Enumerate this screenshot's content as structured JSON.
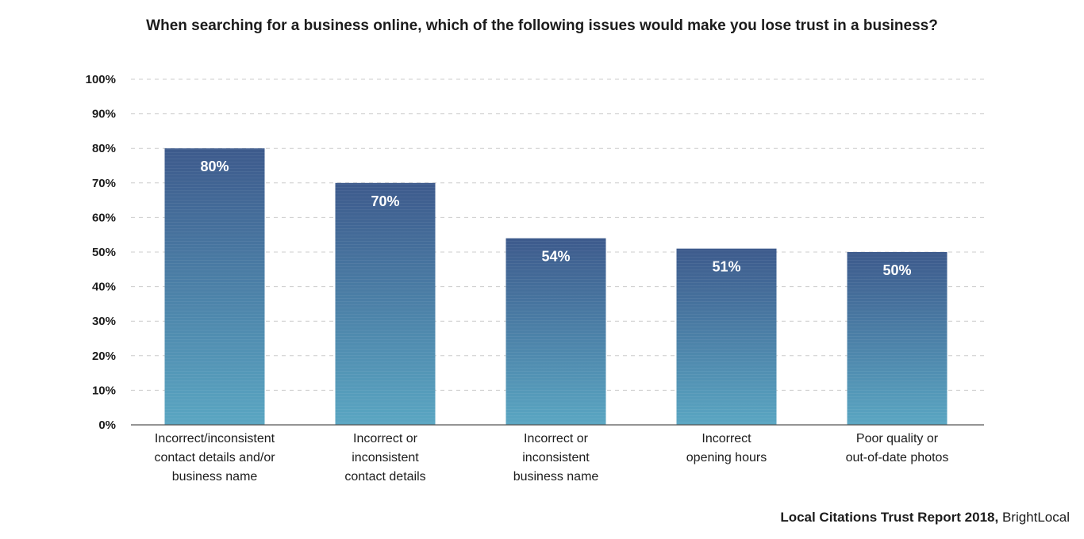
{
  "chart_data": {
    "type": "bar",
    "title": "When searching for a business online, which of the following issues would make you lose trust in a business?",
    "categories": [
      "Incorrect/inconsistent contact details and/or business name",
      "Incorrect or inconsistent contact details",
      "Incorrect or inconsistent business name",
      "Incorrect opening hours",
      "Poor quality or out-of-date photos"
    ],
    "category_lines": [
      [
        "Incorrect/inconsistent",
        "contact details and/or",
        "business name"
      ],
      [
        "Incorrect or",
        "inconsistent",
        "contact details"
      ],
      [
        "Incorrect or",
        "inconsistent",
        "business name"
      ],
      [
        "Incorrect",
        "opening hours"
      ],
      [
        "Poor quality or",
        "out-of-date photos"
      ]
    ],
    "values": [
      80,
      70,
      54,
      51,
      50
    ],
    "data_labels": [
      "80%",
      "70%",
      "54%",
      "51%",
      "50%"
    ],
    "ylim": [
      0,
      100
    ],
    "yticks": [
      0,
      10,
      20,
      30,
      40,
      50,
      60,
      70,
      80,
      90,
      100
    ],
    "ytick_labels": [
      "0%",
      "10%",
      "20%",
      "30%",
      "40%",
      "50%",
      "60%",
      "70%",
      "80%",
      "90%",
      "100%"
    ],
    "xlabel": "",
    "ylabel": "",
    "grid": true,
    "legend": "none",
    "colors": {
      "bar_top": "#3d5a8c",
      "bar_bottom": "#5aa6c2",
      "grid": "#cccccc",
      "axis": "#555555"
    }
  },
  "source": {
    "bold": "Local Citations Trust Report 2018,",
    "normal": " BrightLocal"
  }
}
